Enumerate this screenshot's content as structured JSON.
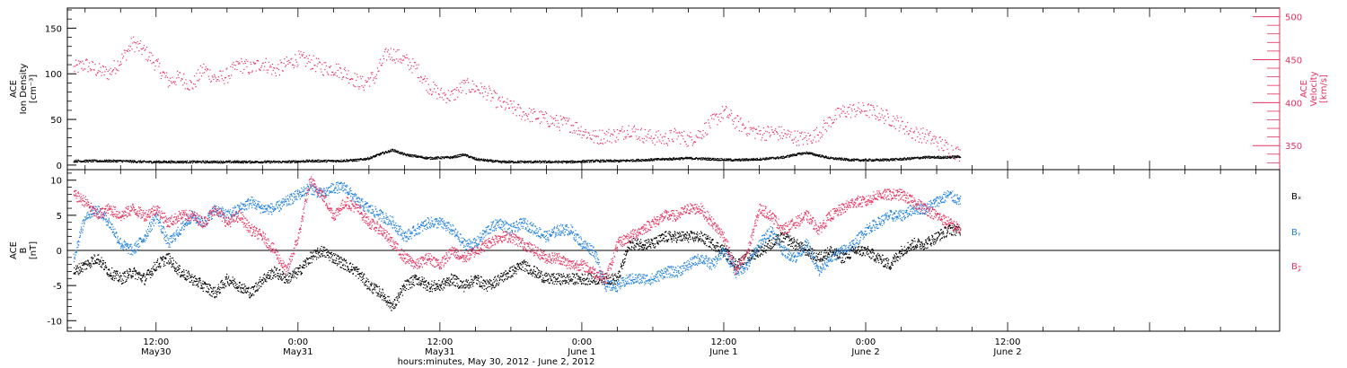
{
  "chart_data": [
    {
      "type": "scatter",
      "title": "",
      "xlabel": "hours:minutes, May 30, 2012 - June  2, 2012",
      "x_unit": "hours since May 30, 2012 00:00",
      "xlim": [
        4.5,
        107
      ],
      "x_ticks": [
        {
          "value": 12,
          "line1": "12:00",
          "line2": "May30"
        },
        {
          "value": 24,
          "line1": "0:00",
          "line2": "May31"
        },
        {
          "value": 36,
          "line1": "12:00",
          "line2": "May31"
        },
        {
          "value": 48,
          "line1": "0:00",
          "line2": "June 1"
        },
        {
          "value": 60,
          "line1": "12:00",
          "line2": "June 1"
        },
        {
          "value": 72,
          "line1": "0:00",
          "line2": "June 2"
        },
        {
          "value": 84,
          "line1": "12:00",
          "line2": "June 2"
        }
      ],
      "left_axis": {
        "label_lines": [
          "ACE",
          "Ion Density",
          "[cm⁻³]"
        ],
        "ylim": [
          -5,
          172
        ],
        "ticks": [
          "0",
          "50",
          "100",
          "150"
        ],
        "tick_values": [
          0,
          50,
          100,
          150
        ]
      },
      "right_axis": {
        "label_lines": [
          "ACE",
          "Velocity",
          "[km/s]"
        ],
        "color": "#e6325f",
        "ylim": [
          322,
          510
        ],
        "ticks": [
          "350",
          "400",
          "450",
          "500"
        ],
        "tick_values": [
          350,
          400,
          450,
          500
        ]
      },
      "series": [
        {
          "axis": "left",
          "color": "#000000",
          "x": [
            5,
            7,
            9,
            11,
            13,
            15,
            17,
            19,
            21,
            23,
            25,
            27,
            29,
            30,
            31,
            32,
            33,
            35,
            37,
            38,
            39,
            41,
            43,
            45,
            47,
            49,
            51,
            53,
            55,
            57,
            59,
            61,
            63,
            65,
            66,
            67,
            69,
            71,
            73,
            75,
            77,
            79,
            80
          ],
          "y": [
            5,
            5,
            5,
            4,
            4,
            4,
            4,
            4,
            4,
            4,
            5,
            5,
            6,
            8,
            13,
            17,
            12,
            8,
            9,
            12,
            7,
            4,
            4,
            4,
            4,
            5,
            5,
            6,
            7,
            8,
            7,
            6,
            7,
            9,
            12,
            14,
            8,
            6,
            6,
            7,
            9,
            9,
            10
          ]
        },
        {
          "axis": "right",
          "color": "#e6325f",
          "x": [
            5,
            6,
            7,
            8,
            9,
            10,
            11,
            12,
            13,
            14,
            15,
            16,
            17,
            18,
            19,
            20,
            21,
            22,
            23,
            24,
            25,
            26,
            27,
            28,
            29,
            29.5,
            30,
            30.5,
            31,
            31.5,
            32,
            33,
            34,
            35,
            36,
            37,
            38,
            39,
            40,
            41,
            42,
            43,
            44,
            45,
            46,
            47,
            48,
            49,
            50,
            51,
            52,
            53,
            54,
            55,
            56,
            57,
            58,
            59,
            60,
            61,
            62,
            63,
            64,
            65,
            66,
            67,
            68,
            69,
            70,
            71,
            72,
            73,
            74,
            75,
            76,
            77,
            78,
            79,
            80
          ],
          "y": [
            440,
            445,
            438,
            435,
            450,
            470,
            460,
            445,
            425,
            430,
            420,
            440,
            428,
            432,
            445,
            440,
            447,
            438,
            445,
            452,
            448,
            441,
            440,
            435,
            425,
            422,
            428,
            430,
            445,
            458,
            457,
            450,
            440,
            420,
            410,
            408,
            420,
            418,
            412,
            400,
            395,
            388,
            385,
            381,
            377,
            375,
            368,
            360,
            362,
            363,
            370,
            363,
            360,
            358,
            363,
            357,
            365,
            378,
            390,
            378,
            370,
            365,
            366,
            364,
            360,
            358,
            365,
            380,
            390,
            392,
            392,
            388,
            382,
            375,
            365,
            362,
            355,
            347,
            340
          ]
        }
      ]
    },
    {
      "type": "scatter",
      "title": "",
      "xlabel": "",
      "xlim": [
        4.5,
        107
      ],
      "left_axis": {
        "label_lines": [
          "ACE",
          "B",
          "[nT]"
        ],
        "ylim": [
          -11.5,
          11.5
        ],
        "ticks": [
          "-10",
          "-5",
          "0",
          "5",
          "10"
        ],
        "tick_values": [
          -10,
          -5,
          0,
          5,
          10
        ]
      },
      "zero_line": true,
      "legend": [
        "Bₓ",
        "Bᵧ",
        "B𝓏"
      ],
      "legend_position": "right",
      "series": [
        {
          "name": "Bₓ",
          "color": "#000000",
          "x": [
            5,
            6,
            7,
            8,
            9,
            10,
            11,
            12,
            13,
            14,
            15,
            16,
            17,
            18,
            19,
            20,
            21,
            22,
            23,
            24,
            25,
            26,
            27,
            28,
            29,
            30,
            31,
            32,
            33,
            34,
            35,
            36,
            37,
            38,
            39,
            40,
            41,
            42,
            43,
            44,
            45,
            46,
            47,
            48,
            49,
            50,
            51,
            52,
            53,
            54,
            55,
            56,
            57,
            58,
            59,
            60,
            61,
            62,
            63,
            64,
            65,
            66,
            67,
            68,
            69,
            70,
            71,
            72,
            73,
            74,
            75,
            76,
            77,
            78,
            79,
            80
          ],
          "y": [
            -3,
            -2,
            -1,
            -3,
            -4,
            -3,
            -4,
            -2,
            -1,
            -3,
            -4,
            -5,
            -6,
            -4,
            -5,
            -6,
            -4,
            -3,
            -4,
            -3,
            -1,
            0,
            -1,
            -2,
            -3,
            -5,
            -6,
            -8,
            -5,
            -4,
            -5,
            -5,
            -4,
            -5,
            -4,
            -5,
            -4,
            -3,
            -2,
            -3,
            -4,
            -4,
            -4,
            -4,
            -4,
            -4,
            -4,
            1,
            1,
            1,
            2,
            2,
            2,
            2,
            1,
            0,
            -2,
            -1,
            0,
            1,
            2,
            1,
            0,
            -1,
            0,
            -1,
            0,
            0,
            -1,
            -2,
            0,
            1,
            1,
            2,
            3,
            3
          ]
        },
        {
          "name": "Bᵧ",
          "color": "#2080e0",
          "x": [
            5,
            6,
            7,
            8,
            9,
            10,
            11,
            12,
            13,
            14,
            15,
            16,
            17,
            18,
            19,
            20,
            21,
            22,
            23,
            24,
            25,
            26,
            27,
            28,
            29,
            30,
            31,
            32,
            33,
            34,
            35,
            36,
            37,
            38,
            39,
            40,
            41,
            42,
            43,
            44,
            45,
            46,
            47,
            48,
            49,
            50,
            51,
            52,
            53,
            54,
            55,
            56,
            57,
            58,
            59,
            60,
            61,
            62,
            63,
            64,
            65,
            66,
            67,
            68,
            69,
            70,
            71,
            72,
            73,
            74,
            75,
            76,
            77,
            78,
            79,
            80
          ],
          "y": [
            -1,
            5,
            6,
            4,
            1,
            0,
            2,
            5,
            1,
            3,
            5,
            4,
            6,
            5,
            6,
            7,
            6,
            6,
            7,
            8,
            9,
            8,
            9,
            9,
            7,
            6,
            5,
            4,
            2,
            3,
            4,
            4,
            3,
            1,
            1,
            3,
            4,
            3,
            4,
            3,
            2,
            3,
            3,
            1,
            0,
            -5,
            -5,
            -4,
            -4,
            -4,
            -3,
            -3,
            -2,
            -1,
            -2,
            0,
            -3,
            -2,
            1,
            3,
            0,
            -1,
            1,
            -3,
            -1,
            0,
            1,
            3,
            4,
            5,
            5,
            6,
            6,
            7,
            8,
            7
          ]
        },
        {
          "name": "B𝓏",
          "color": "#e6325f",
          "x": [
            5,
            6,
            7,
            8,
            9,
            10,
            11,
            12,
            13,
            14,
            15,
            16,
            17,
            18,
            19,
            20,
            21,
            22,
            23,
            24,
            25,
            26,
            27,
            28,
            29,
            30,
            31,
            32,
            33,
            34,
            35,
            36,
            37,
            38,
            39,
            40,
            41,
            42,
            43,
            44,
            45,
            46,
            47,
            48,
            49,
            50,
            51,
            52,
            53,
            54,
            55,
            56,
            57,
            58,
            59,
            60,
            61,
            62,
            63,
            64,
            65,
            66,
            67,
            68,
            69,
            70,
            71,
            72,
            73,
            74,
            75,
            76,
            77,
            78,
            79,
            80
          ],
          "y": [
            8,
            7,
            5,
            6,
            5,
            6,
            5,
            6,
            4,
            5,
            5,
            4,
            6,
            4,
            5,
            3,
            2,
            0,
            -3,
            2,
            10,
            8,
            5,
            7,
            6,
            4,
            3,
            1,
            -1,
            -2,
            -1,
            -2,
            0,
            -1,
            0,
            1,
            2,
            2,
            1,
            0,
            -1,
            -1,
            -2,
            -2,
            -3,
            -4,
            1,
            2,
            3,
            4,
            5,
            5,
            6,
            6,
            4,
            2,
            -3,
            0,
            6,
            5,
            3,
            4,
            5,
            3,
            5,
            6,
            7,
            7,
            8,
            8,
            8,
            7,
            6,
            5,
            4,
            3
          ]
        }
      ]
    }
  ]
}
